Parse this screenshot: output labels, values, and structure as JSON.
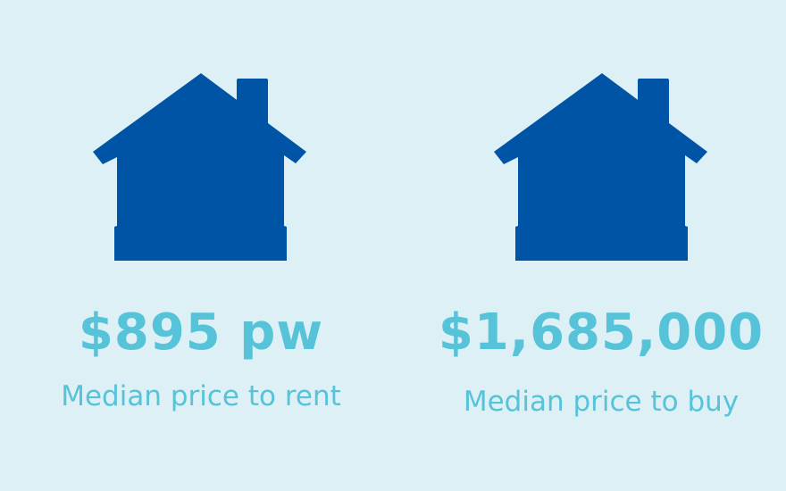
{
  "colors": {
    "background": "#dcf0f6",
    "house": "#0054a6",
    "text": "#56c3d9"
  },
  "rent": {
    "icon": "house-icon",
    "value": "$895 pw",
    "label": "Median price to rent"
  },
  "buy": {
    "icon": "house-icon",
    "value": "$1,685,000",
    "label": "Median price to buy"
  }
}
